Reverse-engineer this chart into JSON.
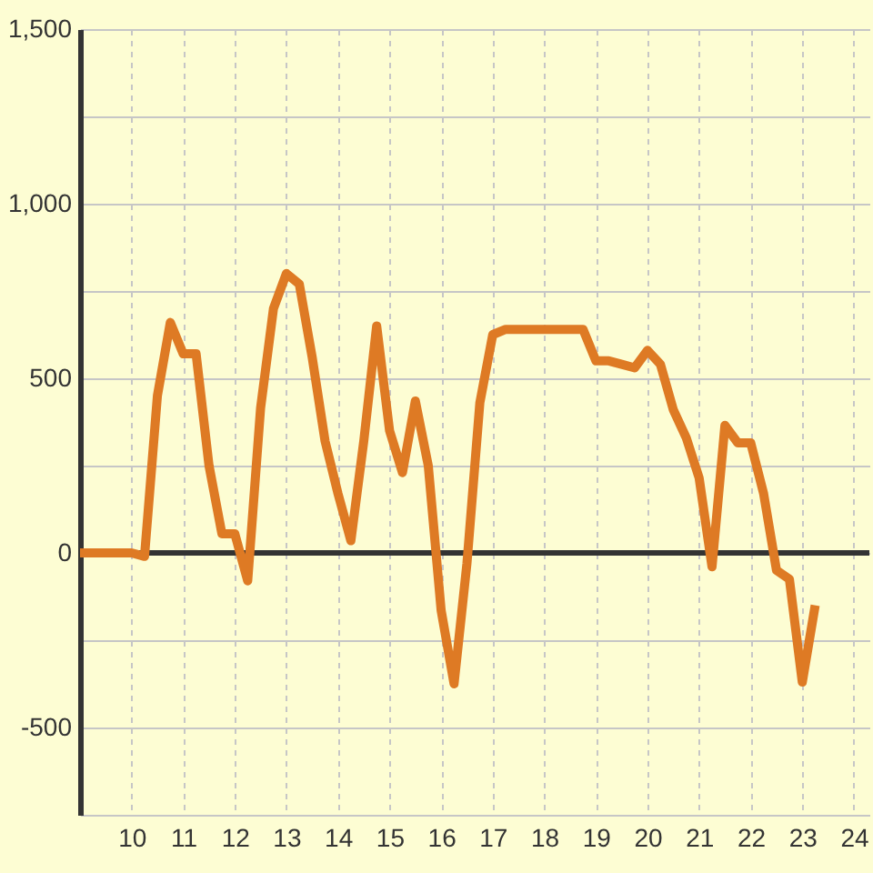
{
  "chart_data": {
    "type": "line",
    "x": [
      9,
      9.25,
      9.5,
      9.75,
      10,
      10.25,
      10.5,
      10.75,
      11,
      11.25,
      11.5,
      11.75,
      12,
      12.25,
      12.5,
      12.75,
      13,
      13.25,
      13.5,
      13.75,
      14,
      14.25,
      14.5,
      14.75,
      15,
      15.25,
      15.5,
      15.75,
      16,
      16.25,
      16.5,
      16.75,
      17,
      17.25,
      17.5,
      17.75,
      18,
      18.25,
      18.5,
      18.75,
      19,
      19.25,
      19.5,
      19.75,
      20,
      20.25,
      20.5,
      20.75,
      21,
      21.25,
      21.5,
      21.75,
      22,
      22.25,
      22.5,
      22.75,
      23,
      23.25
    ],
    "values": [
      0,
      0,
      0,
      0,
      0,
      -10,
      450,
      660,
      570,
      570,
      250,
      55,
      55,
      -80,
      415,
      700,
      800,
      770,
      560,
      320,
      170,
      35,
      320,
      650,
      350,
      230,
      435,
      250,
      -165,
      -375,
      -30,
      430,
      625,
      640,
      640,
      640,
      640,
      640,
      640,
      640,
      550,
      550,
      540,
      530,
      580,
      540,
      410,
      330,
      215,
      -40,
      365,
      315,
      315,
      170,
      -50,
      -75,
      -370,
      -150
    ],
    "color": "#de7a24",
    "line_style": "solid",
    "xlim": [
      9,
      24.3
    ],
    "xticks": [
      10,
      11,
      12,
      13,
      14,
      15,
      16,
      17,
      18,
      19,
      20,
      21,
      22,
      23,
      24
    ],
    "ylim": [
      -750,
      1500
    ],
    "yticks": [
      {
        "value": 1500,
        "label": "1,500"
      },
      {
        "value": 1250,
        "label": null
      },
      {
        "value": 1000,
        "label": "1,000"
      },
      {
        "value": 750,
        "label": null
      },
      500,
      {
        "value": 250,
        "label": null
      },
      0,
      {
        "value": -250,
        "label": null
      },
      -500,
      {
        "value": -750,
        "label": null
      }
    ],
    "grid": true,
    "ref_lines": [
      {
        "axis": "y",
        "value": 0,
        "color": "#333333"
      }
    ]
  }
}
